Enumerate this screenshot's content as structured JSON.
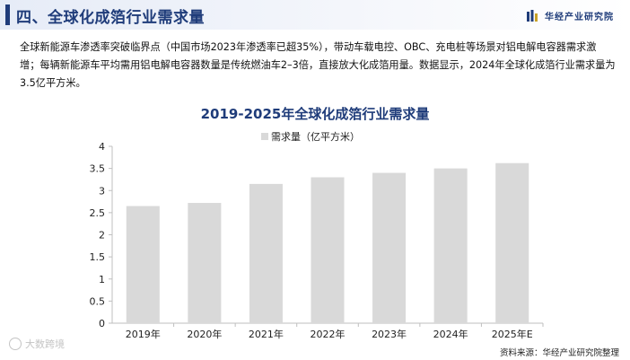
{
  "header": {
    "title": "四、全球化成箔行业需求量",
    "brand": "华经产业研究院"
  },
  "intro_text": "全球新能源车渗透率突破临界点（中国市场2023年渗透率已超35%），带动车载电控、OBC、充电桩等场景对铝电解电容器需求激增；每辆新能源车平均需用铝电解电容器数量是传统燃油车2–3倍，直接放大化成箔用量。数据显示，2024年全球化成箔行业需求量为3.5亿平方米。",
  "source": "资料来源：华经产业研究院整理",
  "corner_watermark": "大数跨境",
  "chart_data": {
    "type": "bar",
    "title": "2019-2025年全球化成箔行业需求量",
    "categories": [
      "2019年",
      "2020年",
      "2021年",
      "2022年",
      "2023年",
      "2024年",
      "2025年E"
    ],
    "series": [
      {
        "name": "需求量（亿平方米）",
        "values": [
          2.65,
          2.72,
          3.15,
          3.3,
          3.4,
          3.5,
          3.62
        ]
      }
    ],
    "ylim": [
      0,
      4
    ],
    "yticks": [
      0,
      0.5,
      1,
      1.5,
      2,
      2.5,
      3,
      3.5,
      4
    ],
    "ytick_labels": [
      "0",
      "0.5",
      "1",
      "1.5",
      "2",
      "2.5",
      "3",
      "3.5",
      "4"
    ],
    "grid": false,
    "legend": "top-left",
    "bar_color": "#d9d9d9"
  }
}
